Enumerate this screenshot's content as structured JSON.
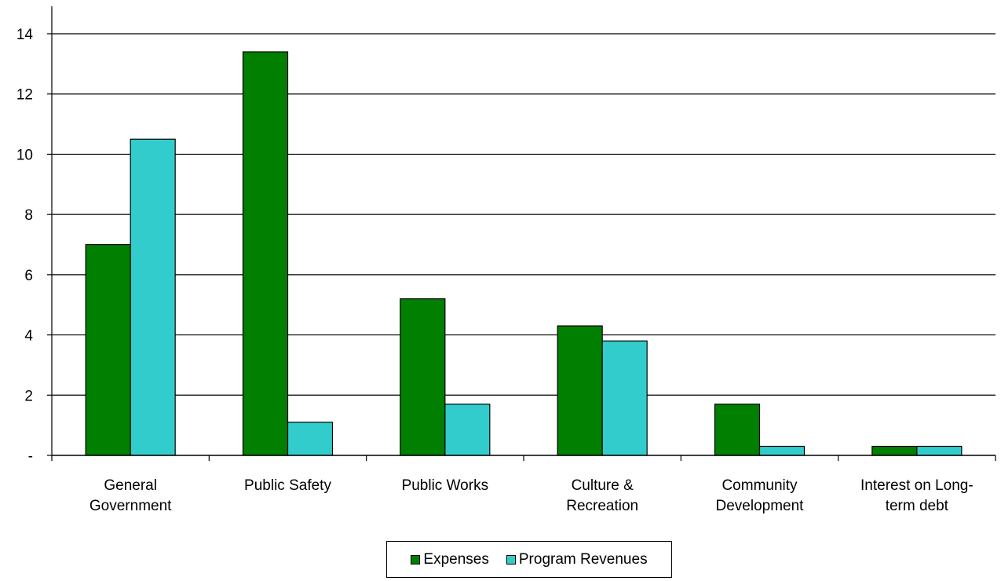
{
  "chart_data": {
    "type": "bar",
    "categories": [
      [
        "General",
        "Government"
      ],
      [
        "Public Safety"
      ],
      [
        "Public Works"
      ],
      [
        "Culture &",
        "Recreation"
      ],
      [
        "Community",
        "Development"
      ],
      [
        "Interest on Long-",
        "term debt"
      ]
    ],
    "series": [
      {
        "name": "Expenses",
        "color": "#007f00",
        "values": [
          7.0,
          13.4,
          5.2,
          4.3,
          1.7,
          0.3
        ]
      },
      {
        "name": "Program Revenues",
        "color": "#33cccc",
        "values": [
          10.5,
          1.1,
          1.7,
          3.8,
          0.3,
          0.3
        ]
      }
    ],
    "y_ticks": [
      {
        "value": 0,
        "label": "-"
      },
      {
        "value": 2,
        "label": "2"
      },
      {
        "value": 4,
        "label": "4"
      },
      {
        "value": 6,
        "label": "6"
      },
      {
        "value": 8,
        "label": "8"
      },
      {
        "value": 10,
        "label": "10"
      },
      {
        "value": 12,
        "label": "12"
      },
      {
        "value": 14,
        "label": "14"
      }
    ],
    "ylim": [
      0,
      14
    ],
    "grid": true,
    "legend_position": "bottom"
  }
}
